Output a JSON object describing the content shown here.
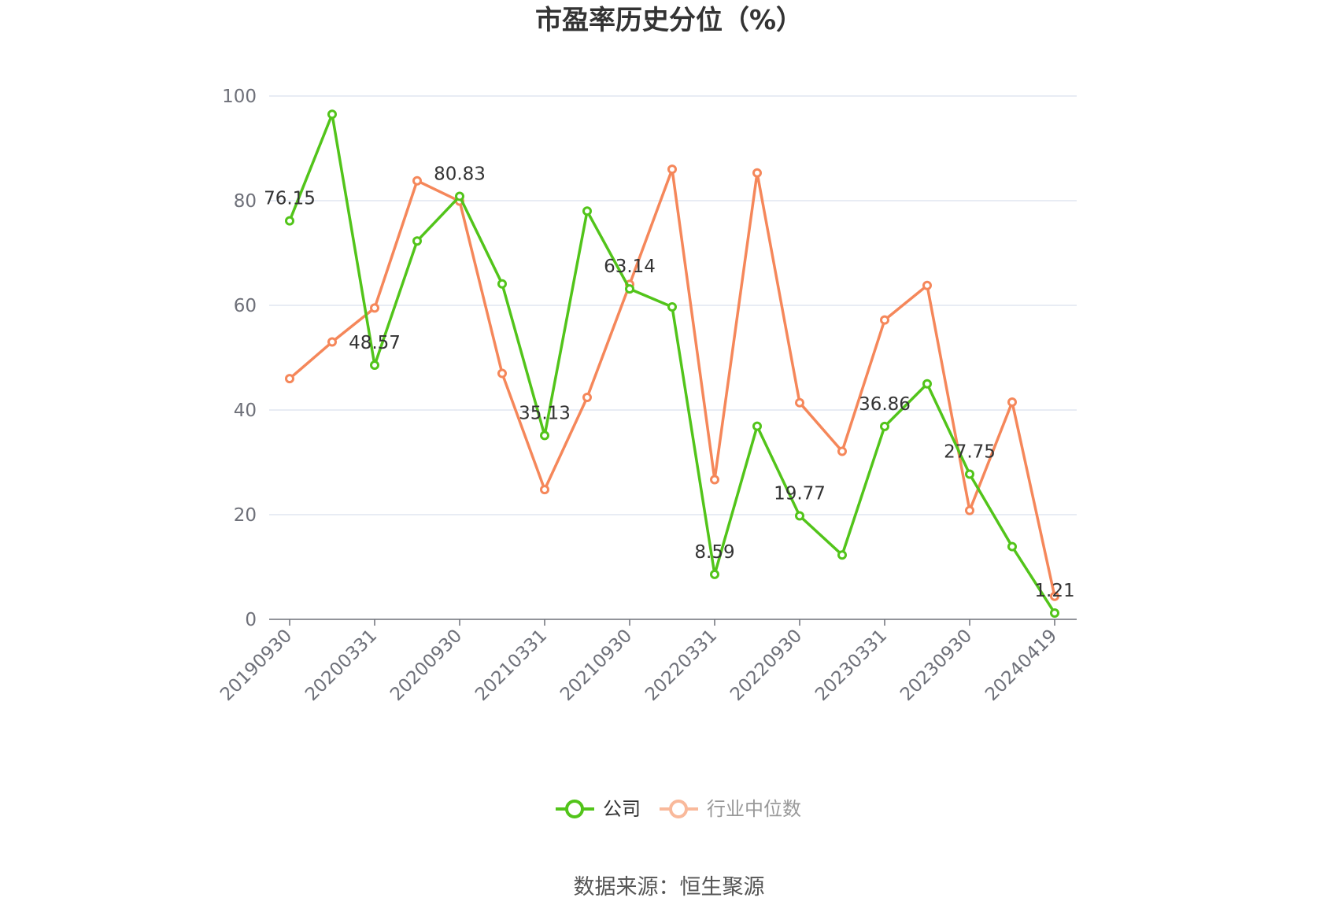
{
  "chart_data": {
    "type": "line",
    "title": "市盈率历史分位（%）",
    "xlabel": "",
    "ylabel": "",
    "ylim": [
      0,
      100
    ],
    "y_ticks": [
      "0",
      "20",
      "40",
      "60",
      "80",
      "100"
    ],
    "x_tick_labels": [
      "20190930",
      "20200331",
      "20200930",
      "20210331",
      "20210930",
      "20220331",
      "20220930",
      "20230331",
      "20230930",
      "20240419"
    ],
    "x": [
      "20190930",
      "20191231",
      "20200331",
      "20200630",
      "20200930",
      "20201231",
      "20210331",
      "20210630",
      "20210930",
      "20211231",
      "20220331",
      "20220630",
      "20220930",
      "20221231",
      "20230331",
      "20230630",
      "20230930",
      "20231231",
      "20240419"
    ],
    "grid": true,
    "legend_position": "bottom",
    "series": [
      {
        "name": "公司",
        "color": "#52c41a",
        "values": [
          76.15,
          96.5,
          48.57,
          72.3,
          80.83,
          64.1,
          35.13,
          78.0,
          63.14,
          59.7,
          8.59,
          36.9,
          19.77,
          12.3,
          36.86,
          45.0,
          27.75,
          13.9,
          1.21
        ],
        "labels": [
          "76.15",
          "",
          "48.57",
          "",
          "80.83",
          "",
          "35.13",
          "",
          "63.14",
          "",
          "8.59",
          "",
          "19.77",
          "",
          "36.86",
          "",
          "27.75",
          "",
          "1.21"
        ]
      },
      {
        "name": "行业中位数",
        "color": "#f5875a",
        "values": [
          46.0,
          53.0,
          59.5,
          83.8,
          79.9,
          47.0,
          24.8,
          42.4,
          64.0,
          86.0,
          26.7,
          85.3,
          41.4,
          32.1,
          57.2,
          63.8,
          20.8,
          41.5,
          4.4
        ]
      }
    ]
  },
  "source": "数据来源：恒生聚源"
}
